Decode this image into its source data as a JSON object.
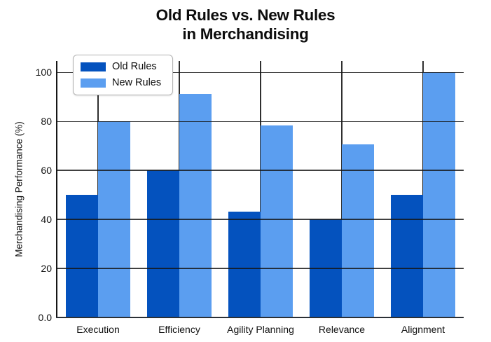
{
  "chart_data": {
    "type": "bar",
    "title": "Old Rules vs. New Rules in Merchandising",
    "title_lines": [
      "Old Rules vs. New Rules",
      "in Merchandising"
    ],
    "xlabel": "",
    "ylabel": "Merchandising Performance (%)",
    "categories": [
      "Execution",
      "Efficiency",
      "Agility Planning",
      "Relevance",
      "Alignment"
    ],
    "series": [
      {
        "name": "Old Rules",
        "color": "#0452be",
        "values": [
          50,
          60,
          43.3,
          40,
          50
        ]
      },
      {
        "name": "New Rules",
        "color": "#5b9ef0",
        "values": [
          80,
          91.3,
          78.3,
          70.6,
          100
        ]
      }
    ],
    "y_ticks": [
      {
        "value": 0,
        "label": "0.0"
      },
      {
        "value": 20,
        "label": "20"
      },
      {
        "value": 40,
        "label": "40"
      },
      {
        "value": 60,
        "label": "60"
      },
      {
        "value": 80,
        "label": "80"
      },
      {
        "value": 100,
        "label": "100"
      }
    ],
    "ylim": [
      0,
      104.7
    ],
    "grid": {
      "horizontal": true,
      "vertical": true,
      "gridlines_over_bars": true
    },
    "legend": {
      "position": "upper-left",
      "entries": [
        "Old Rules",
        "New Rules"
      ]
    },
    "colors": {
      "old_rules": "#0452be",
      "new_rules": "#5b9ef0",
      "gridline": "#2f2f2f",
      "text": "#111111",
      "background": "#ffffff"
    }
  }
}
